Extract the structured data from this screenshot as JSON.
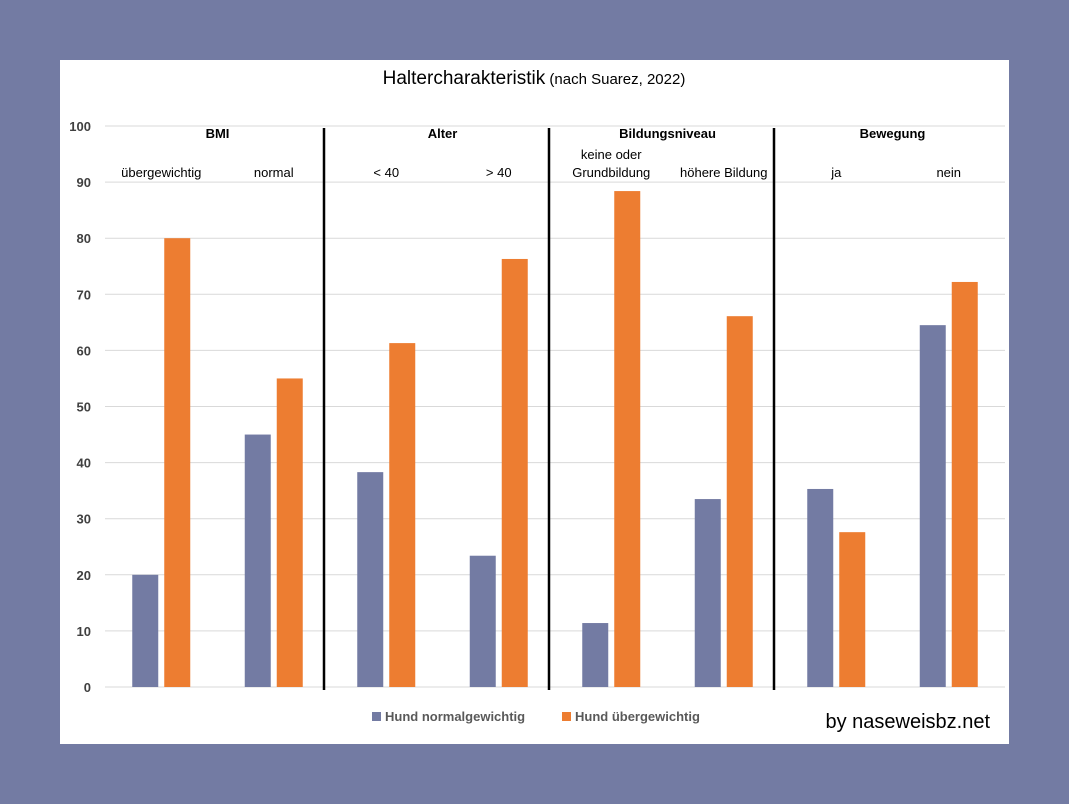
{
  "chart_data": {
    "type": "bar",
    "title": "Haltercharakteristik",
    "subtitle": "(nach Suarez, 2022)",
    "ylim": [
      0,
      100
    ],
    "yticks": [
      0,
      10,
      20,
      30,
      40,
      50,
      60,
      70,
      80,
      90,
      100
    ],
    "grid": true,
    "groups": [
      {
        "label": "BMI",
        "categories": [
          "übergewichtig",
          "normal"
        ]
      },
      {
        "label": "Alter",
        "categories": [
          "< 40",
          "> 40"
        ]
      },
      {
        "label": "Bildungsniveau",
        "categories": [
          "keine oder\nGrundbildung",
          "höhere Bildung"
        ]
      },
      {
        "label": "Bewegung",
        "categories": [
          "ja",
          "nein"
        ]
      }
    ],
    "series": [
      {
        "name": "Hund normalgewichtig",
        "color": "#737ba3",
        "values": [
          20,
          45,
          38.3,
          23.4,
          11.4,
          33.5,
          35.3,
          64.5
        ]
      },
      {
        "name": "Hund übergewichtig",
        "color": "#ed7d31",
        "values": [
          80,
          55,
          61.3,
          76.3,
          88.4,
          66.1,
          27.6,
          72.2
        ]
      }
    ],
    "legend": "bottom-center",
    "credit": "by naseweisbz.net"
  }
}
